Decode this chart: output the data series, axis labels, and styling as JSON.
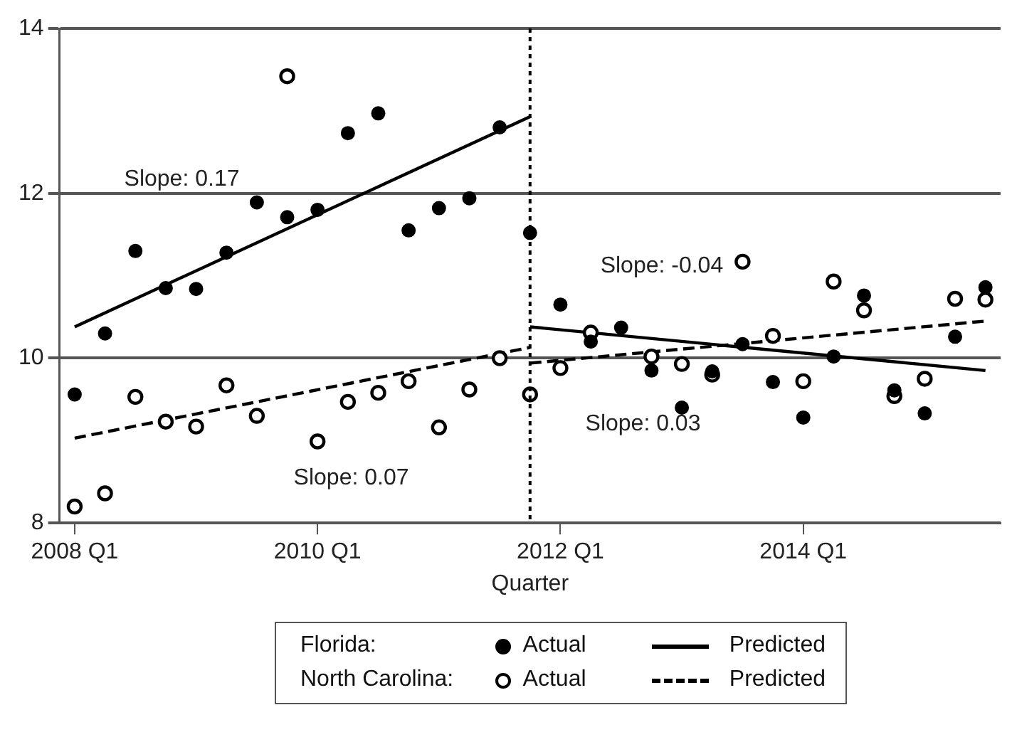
{
  "chart_data": {
    "type": "scatter",
    "xlabel": "Quarter",
    "categories": [
      "2008 Q1",
      null,
      null,
      null,
      null,
      null,
      null,
      null,
      "2010 Q1",
      null,
      null,
      null,
      null,
      null,
      null,
      null,
      "2012 Q1",
      null,
      null,
      null,
      null,
      null,
      null,
      null,
      "2014 Q1",
      null,
      null,
      null,
      null,
      null,
      null
    ],
    "series": [
      {
        "name": "Actual",
        "marker": "circle",
        "color": "#000000",
        "values": [
          9.56,
          10.3,
          11.3,
          10.85,
          10.84,
          11.28,
          11.89,
          11.71,
          11.8,
          12.73,
          12.97,
          11.55,
          11.82,
          11.94,
          12.8,
          11.52,
          10.65,
          10.2,
          10.37,
          9.85,
          9.4,
          9.84,
          10.17,
          9.71,
          9.28,
          10.02,
          10.76,
          9.61,
          9.33,
          10.26,
          10.86
        ]
      },
      {
        "name": "Actual",
        "marker": "circle-open",
        "color": "#000000",
        "values": [
          8.2,
          8.36,
          9.53,
          9.23,
          9.17,
          9.67,
          9.3,
          13.42,
          8.99,
          9.47,
          9.58,
          9.72,
          9.16,
          9.62,
          10.0,
          9.56,
          9.88,
          10.31,
          null,
          10.02,
          9.93,
          9.8,
          11.17,
          10.27,
          9.72,
          10.93,
          10.58,
          9.54,
          9.75,
          10.72,
          10.71
        ]
      },
      {
        "name": "Predicted",
        "type": "line",
        "line_style": "solid",
        "color": "#000000",
        "values": [
          10.38,
          null,
          null,
          null,
          null,
          null,
          null,
          null,
          null,
          null,
          null,
          null,
          null,
          null,
          null,
          12.93,
          null,
          null,
          null,
          null,
          null,
          null,
          null,
          null,
          null,
          null,
          null,
          null,
          null,
          null,
          null
        ]
      },
      {
        "type": "line",
        "line_style": "solid",
        "color": "#000000",
        "values": [
          null,
          null,
          null,
          null,
          null,
          null,
          null,
          null,
          null,
          null,
          null,
          null,
          null,
          null,
          null,
          10.38,
          null,
          null,
          null,
          null,
          null,
          null,
          null,
          null,
          null,
          null,
          null,
          null,
          null,
          null,
          9.85
        ]
      },
      {
        "name": "Predicted",
        "type": "line",
        "line_style": "dashed",
        "color": "#000000",
        "values": [
          9.03,
          null,
          null,
          null,
          null,
          null,
          null,
          null,
          null,
          null,
          null,
          null,
          null,
          null,
          null,
          10.13,
          null,
          null,
          null,
          null,
          null,
          null,
          null,
          null,
          null,
          null,
          null,
          null,
          null,
          null,
          null
        ]
      },
      {
        "type": "line",
        "line_style": "dashed",
        "color": "#000000",
        "values": [
          null,
          null,
          null,
          null,
          null,
          null,
          null,
          null,
          null,
          null,
          null,
          null,
          null,
          null,
          null,
          9.94,
          null,
          null,
          null,
          null,
          null,
          null,
          null,
          null,
          null,
          null,
          null,
          null,
          null,
          null,
          10.45
        ]
      }
    ],
    "ylim": [
      8,
      14
    ],
    "yticks": [
      8,
      10,
      12,
      14
    ],
    "grid": "y",
    "legend": "bottom",
    "annotations": [
      "Slope: 0.17",
      "Slope: 0.07",
      "Slope: -0.04",
      "Slope: 0.03",
      "Florida:",
      "North Carolina:"
    ]
  }
}
